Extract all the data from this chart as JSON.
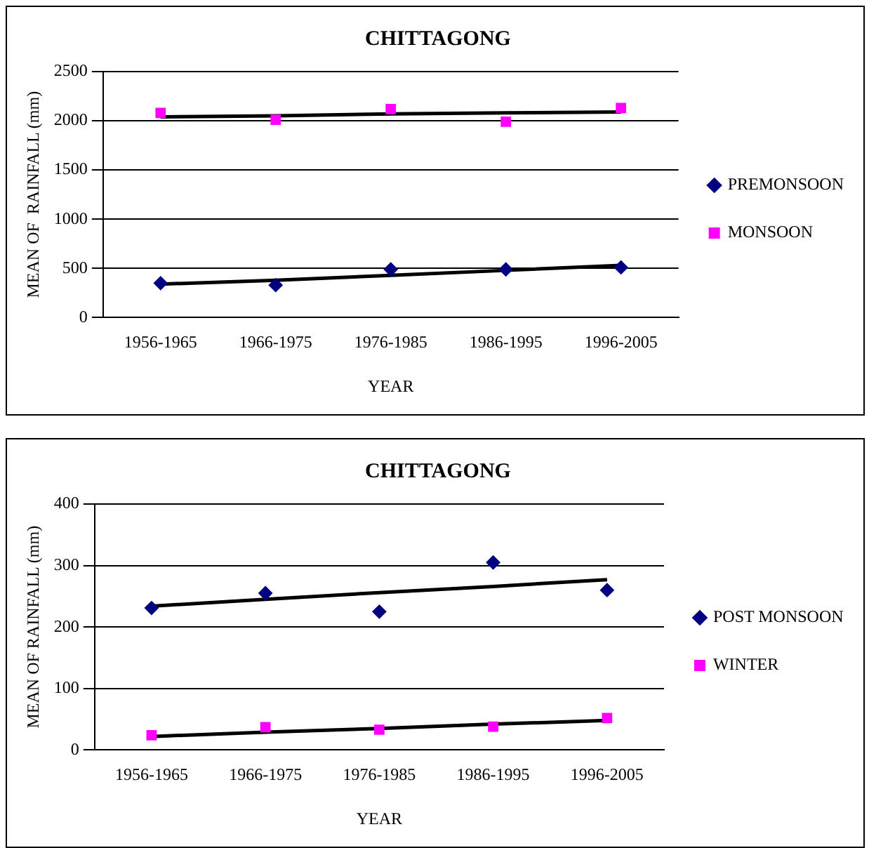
{
  "chart_data": [
    {
      "type": "line",
      "title": "CHITTAGONG",
      "xlabel": "YEAR",
      "ylabel": "MEAN OF  RAINFALL (mm)",
      "categories": [
        "1956-1965",
        "1966-1975",
        "1976-1985",
        "1986-1995",
        "1996-2005"
      ],
      "ylim": [
        0,
        2500
      ],
      "yticks": [
        0,
        500,
        1000,
        1500,
        2000,
        2500
      ],
      "grid": "y",
      "legend": "right",
      "series": [
        {
          "name": "PREMONSOON",
          "type": "scatter",
          "marker": "diamond",
          "color": "#000080",
          "values": [
            350,
            330,
            490,
            490,
            510
          ]
        },
        {
          "name": "MONSOON",
          "type": "scatter",
          "marker": "square",
          "color": "#ff00ff",
          "values": [
            2080,
            2010,
            2120,
            1990,
            2130
          ]
        },
        {
          "type": "line",
          "marker": "none",
          "color": "#000000",
          "values": [
            340,
            380,
            430,
            480,
            530
          ]
        },
        {
          "type": "line",
          "marker": "none",
          "color": "#000000",
          "values": [
            2040,
            2050,
            2070,
            2080,
            2090
          ]
        }
      ]
    },
    {
      "type": "line",
      "title": "CHITTAGONG",
      "xlabel": "YEAR",
      "ylabel": "MEAN OF RAINFALL (mm)",
      "categories": [
        "1956-1965",
        "1966-1975",
        "1976-1985",
        "1986-1995",
        "1996-2005"
      ],
      "ylim": [
        0,
        400
      ],
      "yticks": [
        0,
        100,
        200,
        300,
        400
      ],
      "grid": "y",
      "legend": "right",
      "series": [
        {
          "name": "POST MONSOON",
          "type": "scatter",
          "marker": "diamond",
          "color": "#000080",
          "values": [
            231,
            255,
            225,
            305,
            260
          ]
        },
        {
          "name": "WINTER",
          "type": "scatter",
          "marker": "square",
          "color": "#ff00ff",
          "values": [
            24,
            37,
            33,
            38,
            52
          ]
        },
        {
          "type": "line",
          "marker": "none",
          "color": "#000000",
          "values": [
            234,
            245,
            256,
            266,
            277
          ]
        },
        {
          "type": "line",
          "marker": "none",
          "color": "#000000",
          "values": [
            22,
            29,
            35,
            42,
            48
          ]
        }
      ]
    }
  ]
}
